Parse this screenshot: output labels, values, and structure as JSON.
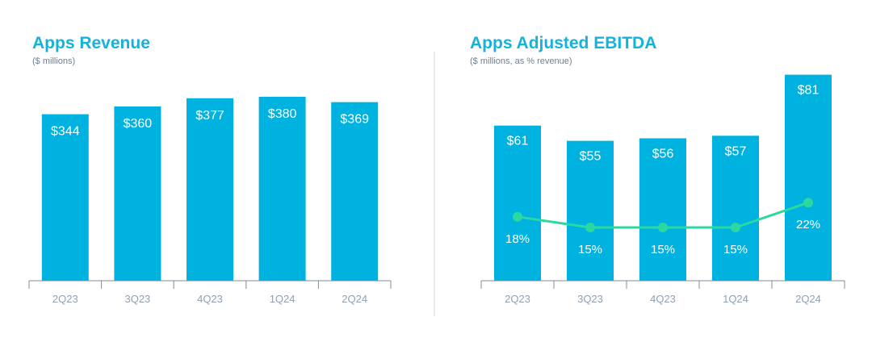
{
  "colors": {
    "title": "#14b3dc",
    "bar": "#00b2df",
    "line": "#2bd9a0",
    "axis": "#7f8c9a",
    "divider": "#d5dbe1"
  },
  "chart_data": [
    {
      "type": "bar",
      "title": "Apps Revenue",
      "subtitle": "($ millions)",
      "categories": [
        "2Q23",
        "3Q23",
        "4Q23",
        "1Q24",
        "2Q24"
      ],
      "values": [
        344,
        360,
        377,
        380,
        369
      ],
      "value_labels": [
        "$344",
        "$360",
        "$377",
        "$380",
        "$369"
      ],
      "ylim": [
        0,
        400
      ],
      "grid": false,
      "legend": "none"
    },
    {
      "type": "bar",
      "title": "Apps Adjusted EBITDA",
      "subtitle": "($ millions, as % revenue)",
      "categories": [
        "2Q23",
        "3Q23",
        "4Q23",
        "1Q24",
        "2Q24"
      ],
      "values": [
        61,
        55,
        56,
        57,
        81
      ],
      "value_labels": [
        "$61",
        "$55",
        "$56",
        "$57",
        "$81"
      ],
      "ylim": [
        0,
        85
      ],
      "grid": false,
      "legend": "none",
      "line_series": {
        "values": [
          18,
          15,
          15,
          15,
          22
        ],
        "value_labels": [
          "18%",
          "15%",
          "15%",
          "15%",
          "22%"
        ],
        "ylim": [
          0,
          50
        ]
      }
    }
  ]
}
